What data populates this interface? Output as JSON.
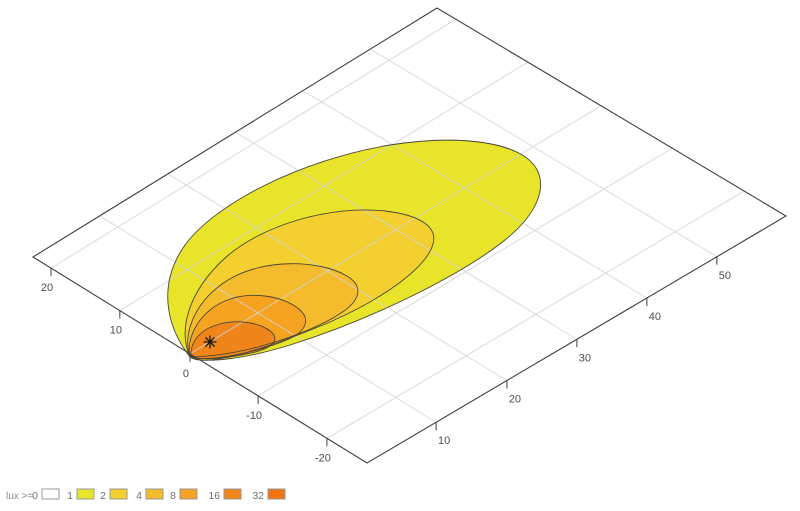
{
  "chart_data": {
    "type": "contour",
    "title": "",
    "description": "Isolux contour plot of light distribution on a ground plane, drawn in 3D perspective; nested teardrop-shaped iso-illuminance regions emanate from a lamp at the origin.",
    "axes": {
      "bottom": {
        "label": "",
        "ticks": [
          "10",
          "20",
          "30",
          "40",
          "50"
        ]
      },
      "left": {
        "label": "",
        "ticks": [
          "20",
          "10",
          "0",
          "-10",
          "-20"
        ]
      },
      "grid": "on",
      "grid_spacing": 10
    },
    "legend": {
      "label": "lux >=",
      "position": "bottom-left",
      "levels": [
        {
          "value": "0",
          "color": "#ffffff"
        },
        {
          "value": "1",
          "color": "#e7e42a"
        },
        {
          "value": "2",
          "color": "#f3d02f"
        },
        {
          "value": "4",
          "color": "#f4bb2d"
        },
        {
          "value": "8",
          "color": "#f6a322"
        },
        {
          "value": "16",
          "color": "#f0861a"
        },
        {
          "value": "32",
          "color": "#ee7414"
        }
      ]
    },
    "contours": [
      {
        "level": "1",
        "color": "#e7e42a",
        "approx_max_distance": 47,
        "approx_lateral_range": [
          -7,
          11
        ]
      },
      {
        "level": "2",
        "color": "#f3d02f",
        "approx_max_distance": 31,
        "approx_lateral_range": [
          -6,
          7
        ]
      },
      {
        "level": "4",
        "color": "#f4bb2d",
        "approx_max_distance": 21,
        "approx_lateral_range": [
          -4,
          5
        ]
      },
      {
        "level": "8",
        "color": "#f6a322",
        "approx_max_distance": 13,
        "approx_lateral_range": [
          -3,
          4
        ]
      },
      {
        "level": "16",
        "color": "#f0861a",
        "approx_max_distance": 8,
        "approx_lateral_range": [
          -2,
          3
        ]
      }
    ],
    "convergence_point": {
      "distance": 0,
      "lateral": 0
    },
    "marker": {
      "symbol": "*",
      "distance": 3,
      "lateral": 0
    },
    "colors": {
      "background": "#ffffff",
      "plot_border": "#3f3f3f",
      "grid_line": "#d4d4d4",
      "contour_line": "#4a4636",
      "tick_text": "#4d4d4d",
      "legend_text": "#6e6e6e",
      "legend_title_text": "#8a8a8a",
      "swatch_border": "#999999",
      "marker_color": "#1a1a1a"
    }
  }
}
